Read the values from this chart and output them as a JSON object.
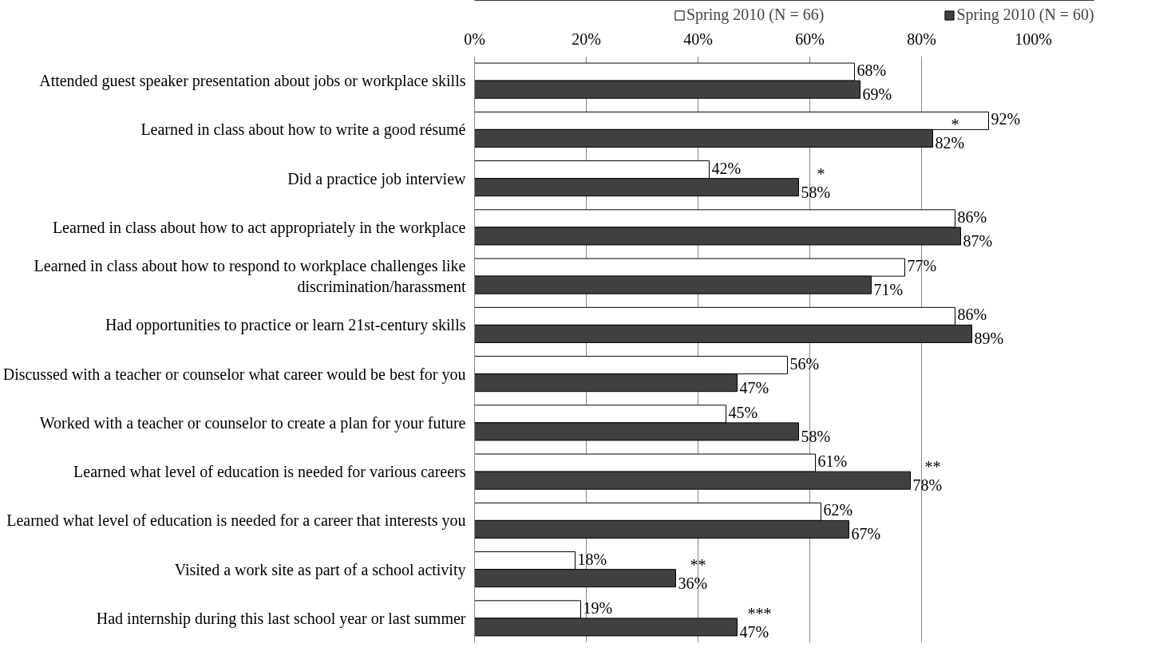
{
  "chart_data": {
    "type": "bar",
    "orientation": "horizontal",
    "categories": [
      "Attended guest speaker presentation about jobs or workplace skills",
      "Learned in class about how to write a good résumé",
      "Did a practice job interview",
      "Learned in class about how to act appropriately in the workplace",
      "Learned in class about how to respond to workplace challenges like discrimination/harassment",
      "Had opportunities to practice or learn 21st-century skills",
      "Discussed with a teacher or counselor what career would be best for you",
      "Worked with a teacher or counselor to create a plan for your future",
      "Learned what level of education is needed for various careers",
      "Learned what level of education is needed for a career that interests you",
      "Visited a work site as part of a school activity",
      "Had internship during this last school year or last summer"
    ],
    "series": [
      {
        "name": "Spring 2010 (N = 66)",
        "color": "#ffffff",
        "values": [
          68,
          92,
          42,
          86,
          77,
          86,
          56,
          45,
          61,
          62,
          18,
          19
        ],
        "value_labels": [
          "68%",
          "92%",
          "42%",
          "86%",
          "77%",
          "86%",
          "56%",
          "45%",
          "61%",
          "62%",
          "18%",
          "19%"
        ]
      },
      {
        "name": "Spring 2010 (N = 60)",
        "color": "#404040",
        "values": [
          69,
          82,
          58,
          87,
          71,
          89,
          47,
          58,
          78,
          67,
          36,
          47
        ],
        "value_labels": [
          "69%",
          "82%",
          "58%",
          "87%",
          "71%",
          "89%",
          "47%",
          "58%",
          "78%",
          "67%",
          "36%",
          "47%"
        ]
      }
    ],
    "xlim": [
      0,
      100
    ],
    "xticks": [
      {
        "value": 0,
        "label": "0%"
      },
      {
        "value": 20,
        "label": "20%"
      },
      {
        "value": 40,
        "label": "40%"
      },
      {
        "value": 60,
        "label": "60%"
      },
      {
        "value": 80,
        "label": "80%"
      },
      {
        "value": 100,
        "label": "100%"
      }
    ],
    "grid": "x",
    "legend": "top",
    "annotations": [
      {
        "text": "*",
        "x": 82,
        "y": "Learned in class about how to write a good résumé"
      },
      {
        "text": "*",
        "x": 58,
        "y": "Did a practice job interview"
      },
      {
        "text": "**",
        "x": 78,
        "y": "Learned what level of education is needed for various careers"
      },
      {
        "text": "**",
        "x": 36,
        "y": "Visited a work site as part of a school activity"
      },
      {
        "text": "***",
        "x": 47,
        "y": "Had internship during this last school year or last summer"
      }
    ]
  }
}
